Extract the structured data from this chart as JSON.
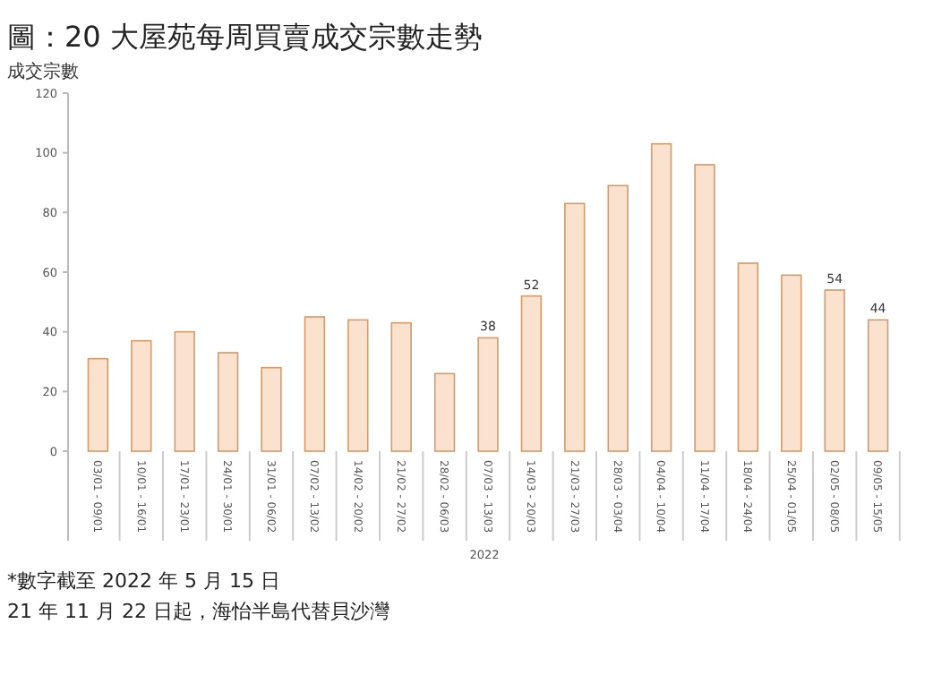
{
  "chart_data": {
    "type": "bar",
    "title": "圖：20 大屋苑每周買賣成交宗數走勢",
    "ylabel": "成交宗數",
    "xlabel": "2022",
    "categories": [
      "03/01 - 09/01",
      "10/01 - 16/01",
      "17/01 - 23/01",
      "24/01 - 30/01",
      "31/01 - 06/02",
      "07/02 - 13/02",
      "14/02 - 20/02",
      "21/02 - 27/02",
      "28/02 - 06/03",
      "07/03 - 13/03",
      "14/03 - 20/03",
      "21/03 - 27/03",
      "28/03 - 03/04",
      "04/04 - 10/04",
      "11/04 - 17/04",
      "18/04 - 24/04",
      "25/04 - 01/05",
      "02/05 - 08/05",
      "09/05 - 15/05"
    ],
    "values": [
      31,
      37,
      40,
      33,
      28,
      45,
      44,
      43,
      26,
      38,
      52,
      83,
      89,
      103,
      96,
      63,
      59,
      54,
      44
    ],
    "value_labels": [
      null,
      null,
      null,
      null,
      null,
      null,
      null,
      null,
      null,
      "38",
      "52",
      null,
      null,
      null,
      null,
      null,
      null,
      "54",
      "44"
    ],
    "color": "#fbe2cf",
    "ylim": [
      0,
      120
    ],
    "yticks": [
      0,
      20,
      40,
      60,
      80,
      100,
      120
    ],
    "grid": false,
    "annotations": [
      "*數字截至 2022 年 5 月 15 日",
      "21 年 11 月 22 日起，海怡半島代替貝沙灣"
    ]
  }
}
